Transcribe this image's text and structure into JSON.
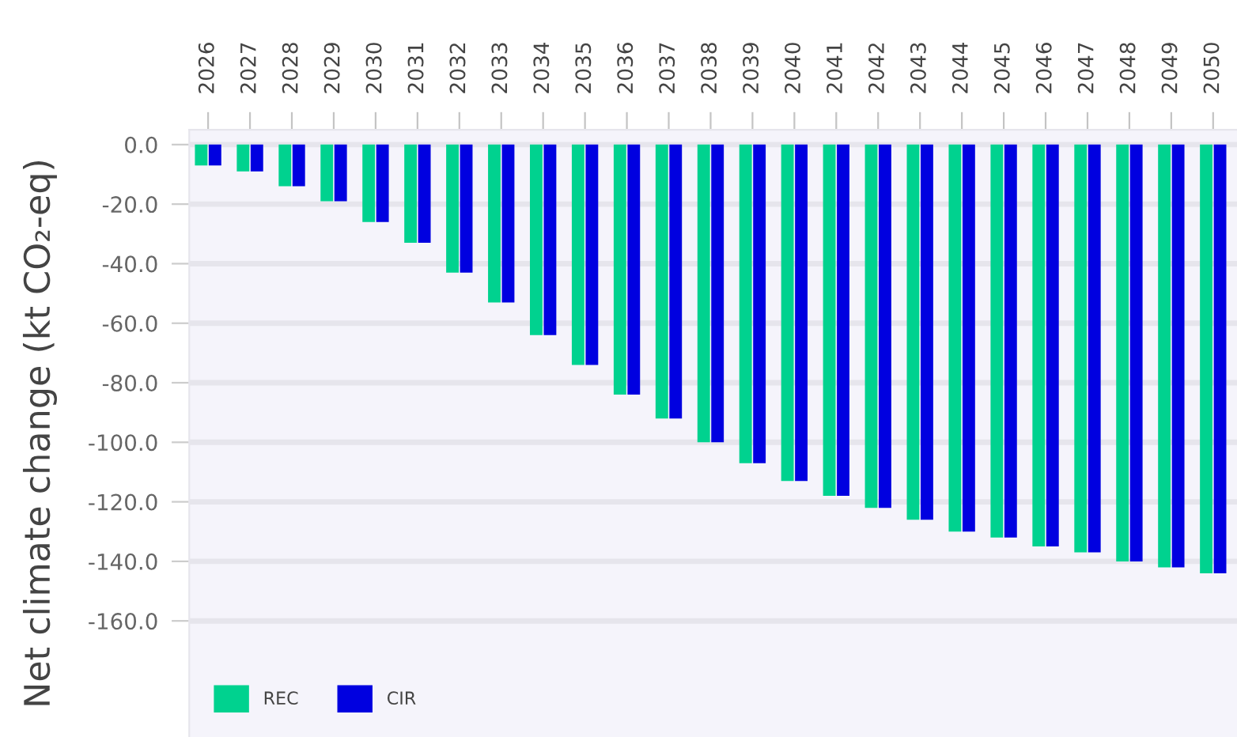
{
  "chart_data": {
    "type": "bar",
    "ylabel": "Net climate change (kt CO₂-eq)",
    "categories": [
      "2026",
      "2027",
      "2028",
      "2029",
      "2030",
      "2031",
      "2032",
      "2033",
      "2034",
      "2035",
      "2036",
      "2037",
      "2038",
      "2039",
      "2040",
      "2041",
      "2042",
      "2043",
      "2044",
      "2045",
      "2046",
      "2047",
      "2048",
      "2049",
      "2050"
    ],
    "series": [
      {
        "name": "REC",
        "color": "#00d28f",
        "values": [
          -7,
          -9,
          -14,
          -19,
          -26,
          -33,
          -43,
          -53,
          -64,
          -74,
          -84,
          -92,
          -100,
          -107,
          -113,
          -118,
          -122,
          -126,
          -130,
          -132,
          -135,
          -137,
          -140,
          -142,
          -144
        ]
      },
      {
        "name": "CIR",
        "color": "#0000e0",
        "values": [
          -7,
          -9,
          -14,
          -19,
          -26,
          -33,
          -43,
          -53,
          -64,
          -74,
          -84,
          -92,
          -100,
          -107,
          -113,
          -118,
          -122,
          -126,
          -130,
          -132,
          -135,
          -137,
          -140,
          -142,
          -144
        ]
      }
    ],
    "ylim": [
      -199,
      5
    ],
    "yticks": [
      {
        "value": 0,
        "label": "0.0"
      },
      {
        "value": -20,
        "label": "-20.0"
      },
      {
        "value": -40,
        "label": "-40.0"
      },
      {
        "value": -60,
        "label": "-60.0"
      },
      {
        "value": -80,
        "label": "-80.0"
      },
      {
        "value": -100,
        "label": "-100.0"
      },
      {
        "value": -120,
        "label": "-120.0"
      },
      {
        "value": -140,
        "label": "-140.0"
      },
      {
        "value": -160,
        "label": "-160.0"
      }
    ],
    "grid": "y",
    "legend": "bottom left"
  }
}
